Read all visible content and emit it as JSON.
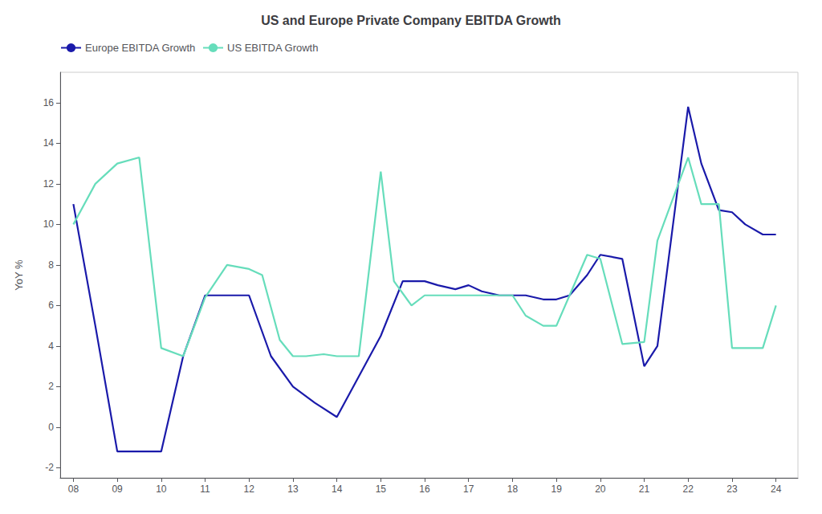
{
  "chart_data": {
    "type": "line",
    "title": "US and Europe Private Company EBITDA Growth",
    "ylabel": "YoY %",
    "series": [
      {
        "name": "Europe EBITDA Growth",
        "color": "#1a1aaa",
        "x": [
          2008,
          2008.5,
          2009,
          2010,
          2010.5,
          2011,
          2011.7,
          2012,
          2012.5,
          2013,
          2013.5,
          2014,
          2014.5,
          2015,
          2015.5,
          2016,
          2016.3,
          2016.7,
          2017,
          2017.3,
          2017.7,
          2018,
          2018.3,
          2018.7,
          2019,
          2019.3,
          2019.7,
          2020,
          2020.5,
          2021,
          2021.3,
          2022,
          2022.3,
          2022.7,
          2023,
          2023.3,
          2023.7,
          2024
        ],
        "values": [
          11.0,
          5.0,
          -1.2,
          -1.2,
          3.5,
          6.5,
          6.5,
          6.5,
          3.5,
          2.0,
          1.2,
          0.5,
          2.5,
          4.5,
          7.2,
          7.2,
          7.0,
          6.8,
          7.0,
          6.7,
          6.5,
          6.5,
          6.5,
          6.3,
          6.3,
          6.5,
          7.5,
          8.5,
          8.3,
          3.0,
          4.0,
          15.8,
          13.0,
          10.7,
          10.6,
          10.0,
          9.5,
          9.5
        ]
      },
      {
        "name": "US EBITDA Growth",
        "color": "#66ddbb",
        "x": [
          2008,
          2008.5,
          2009,
          2009.5,
          2010,
          2010.5,
          2011,
          2011.5,
          2012,
          2012.3,
          2012.7,
          2013,
          2013.3,
          2013.7,
          2014,
          2014.5,
          2015,
          2015.3,
          2015.7,
          2016,
          2016.3,
          2016.7,
          2017,
          2017.3,
          2017.7,
          2018,
          2018.3,
          2018.7,
          2019,
          2019.3,
          2019.7,
          2020,
          2020.5,
          2021,
          2021.3,
          2022,
          2022.3,
          2022.7,
          2023,
          2023.3,
          2023.7,
          2024
        ],
        "values": [
          10.0,
          12.0,
          13.0,
          13.3,
          3.9,
          3.5,
          6.4,
          8.0,
          7.8,
          7.5,
          4.3,
          3.5,
          3.5,
          3.6,
          3.5,
          3.5,
          12.6,
          7.2,
          6.0,
          6.5,
          6.5,
          6.5,
          6.5,
          6.5,
          6.5,
          6.5,
          5.5,
          5.0,
          5.0,
          6.5,
          8.5,
          8.3,
          4.1,
          4.2,
          9.2,
          13.3,
          11.0,
          11.0,
          3.9,
          3.9,
          3.9,
          6.0
        ]
      }
    ],
    "xlim": [
      2007.7,
      2024.5
    ],
    "xticks": [
      {
        "value": 2008,
        "label": "08"
      },
      {
        "value": 2009,
        "label": "09"
      },
      {
        "value": 2010,
        "label": "10"
      },
      {
        "value": 2011,
        "label": "11"
      },
      {
        "value": 2012,
        "label": "12"
      },
      {
        "value": 2013,
        "label": "13"
      },
      {
        "value": 2014,
        "label": "14"
      },
      {
        "value": 2015,
        "label": "15"
      },
      {
        "value": 2016,
        "label": "16"
      },
      {
        "value": 2017,
        "label": "17"
      },
      {
        "value": 2018,
        "label": "18"
      },
      {
        "value": 2019,
        "label": "19"
      },
      {
        "value": 2020,
        "label": "20"
      },
      {
        "value": 2021,
        "label": "21"
      },
      {
        "value": 2022,
        "label": "22"
      },
      {
        "value": 2023,
        "label": "23"
      },
      {
        "value": 2024,
        "label": "24"
      }
    ],
    "ylim": [
      -2.5,
      17.5
    ],
    "yticks": [
      -2,
      0,
      2,
      4,
      6,
      8,
      10,
      12,
      14,
      16
    ],
    "grid": false,
    "legend": "upper left"
  }
}
